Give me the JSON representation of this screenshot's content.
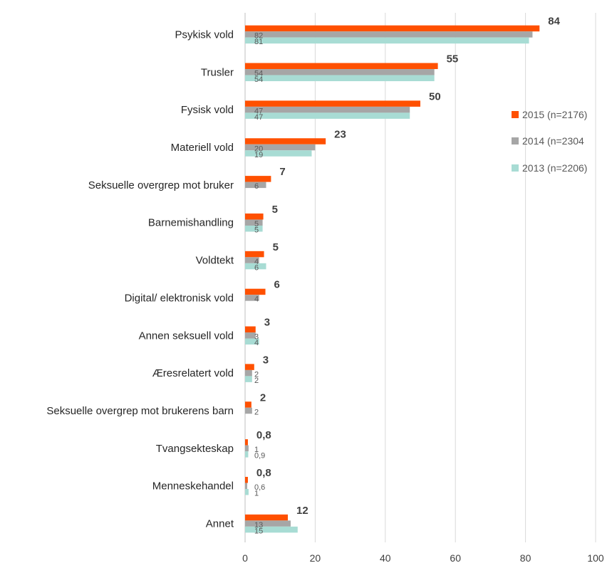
{
  "chart_data": {
    "type": "bar",
    "orientation": "horizontal",
    "title": "",
    "xlabel": "",
    "ylabel": "",
    "xlim": [
      0,
      100
    ],
    "xticks": [
      0,
      20,
      40,
      60,
      80,
      100
    ],
    "grid": true,
    "legend_position": "right",
    "categories": [
      "Psykisk vold",
      "Trusler",
      "Fysisk vold",
      "Materiell vold",
      "Seksuelle overgrep mot bruker",
      "Barnemishandling",
      "Voldtekt",
      "Digital/ elektronisk vold",
      "Annen seksuell vold",
      "Æresrelatert vold",
      "Seksuelle overgrep mot brukerens barn",
      "Tvangsekteskap",
      "Menneskehandel",
      "Annet"
    ],
    "series": [
      {
        "name": "2015 (n=2176)",
        "color": "#ff5000",
        "values": [
          84,
          55,
          50,
          23,
          7.4,
          5.2,
          5.4,
          5.8,
          3.0,
          2.6,
          1.8,
          0.8,
          0.8,
          12.2
        ],
        "labels": [
          "84",
          "55",
          "50",
          "23",
          "7",
          "5",
          "5",
          "6",
          "3",
          "3",
          "2",
          "0,8",
          "0,8",
          "12"
        ]
      },
      {
        "name": "2014 (n=2304",
        "color": "#a6a6a6",
        "values": [
          82,
          54,
          47,
          20,
          6,
          5,
          4,
          4,
          3,
          2,
          2,
          1,
          0.6,
          13
        ],
        "labels": [
          "82",
          "54",
          "47",
          "20",
          "6",
          "5",
          "4",
          "4",
          "3",
          "2",
          "2",
          "1",
          "0,6",
          "13"
        ]
      },
      {
        "name": "2013 (n=2206)",
        "color": "#a8dcd4",
        "values": [
          81,
          54,
          47,
          19,
          null,
          5,
          6,
          null,
          4,
          2,
          null,
          0.9,
          1,
          15
        ],
        "labels": [
          "81",
          "54",
          "47",
          "19",
          "",
          "5",
          "6",
          "",
          "4",
          "2",
          "",
          "0,9",
          "1",
          "15"
        ]
      }
    ]
  }
}
